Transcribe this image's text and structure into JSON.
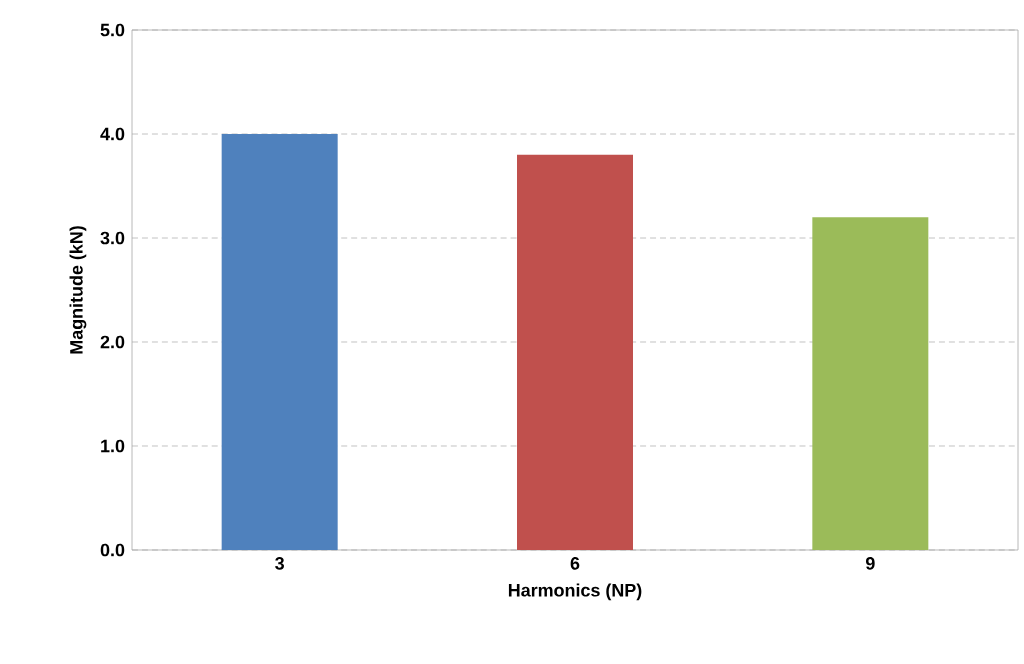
{
  "chart_data": {
    "type": "bar",
    "xlabel": "Harmonics (NP)",
    "ylabel": "Magnitude (kN)",
    "categories": [
      "3",
      "6",
      "9"
    ],
    "values": [
      4.0,
      3.8,
      3.2
    ],
    "colors": [
      "#4f81bd",
      "#c0504d",
      "#9bbb59"
    ],
    "ylim": [
      0,
      5
    ],
    "yticks": [
      {
        "value": 0,
        "label": "0.0"
      },
      {
        "value": 1,
        "label": "1.0"
      },
      {
        "value": 2,
        "label": "2.0"
      },
      {
        "value": 3,
        "label": "3.0"
      },
      {
        "value": 4,
        "label": "4.0"
      },
      {
        "value": 5,
        "label": "5.0"
      }
    ],
    "grid": "y"
  }
}
